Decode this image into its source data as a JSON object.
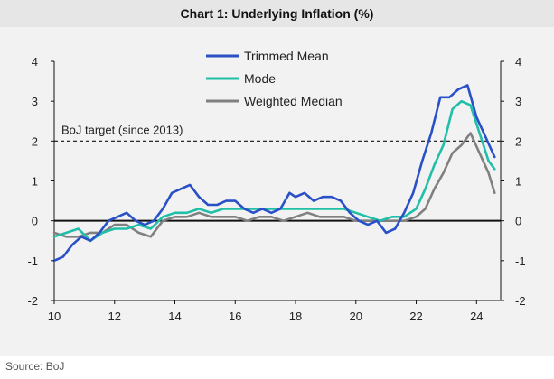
{
  "title": "Chart 1: Underlying Inflation (%)",
  "source": "Source: BoJ",
  "colors": {
    "trimmed_mean": "#2a50c8",
    "mode": "#1fbfa8",
    "weighted_median": "#808080",
    "zero_line": "#111111",
    "target": "#111111"
  },
  "chart_data": {
    "type": "line",
    "title": "Chart 1: Underlying Inflation (%)",
    "xlabel": "",
    "ylabel": "",
    "xlim": [
      10,
      24.8
    ],
    "ylim": [
      -2,
      4
    ],
    "x_ticks": [
      10,
      12,
      14,
      16,
      18,
      20,
      22,
      24
    ],
    "x_tick_labels": [
      "10",
      "12",
      "14",
      "16",
      "18",
      "20",
      "22",
      "24"
    ],
    "y_ticks": [
      -2,
      -1,
      0,
      1,
      2,
      3,
      4
    ],
    "y_tick_labels": [
      "-2",
      "-1",
      "0",
      "1",
      "2",
      "3",
      "4"
    ],
    "legend_position": "top-center",
    "grid": false,
    "annotations": [
      {
        "text": "BoJ target (since 2013)",
        "y": 2
      }
    ],
    "series": [
      {
        "name": "Trimmed Mean",
        "color": "#2a50c8",
        "points": [
          [
            10.0,
            -1.0
          ],
          [
            10.3,
            -0.9
          ],
          [
            10.6,
            -0.6
          ],
          [
            10.9,
            -0.4
          ],
          [
            11.2,
            -0.5
          ],
          [
            11.5,
            -0.3
          ],
          [
            11.8,
            0.0
          ],
          [
            12.1,
            0.1
          ],
          [
            12.4,
            0.2
          ],
          [
            12.7,
            0.0
          ],
          [
            13.0,
            -0.1
          ],
          [
            13.3,
            0.0
          ],
          [
            13.6,
            0.3
          ],
          [
            13.9,
            0.7
          ],
          [
            14.2,
            0.8
          ],
          [
            14.5,
            0.9
          ],
          [
            14.8,
            0.6
          ],
          [
            15.1,
            0.4
          ],
          [
            15.4,
            0.4
          ],
          [
            15.7,
            0.5
          ],
          [
            16.0,
            0.5
          ],
          [
            16.3,
            0.3
          ],
          [
            16.6,
            0.2
          ],
          [
            16.9,
            0.3
          ],
          [
            17.2,
            0.2
          ],
          [
            17.5,
            0.3
          ],
          [
            17.8,
            0.7
          ],
          [
            18.0,
            0.6
          ],
          [
            18.3,
            0.7
          ],
          [
            18.6,
            0.5
          ],
          [
            18.9,
            0.6
          ],
          [
            19.2,
            0.6
          ],
          [
            19.5,
            0.5
          ],
          [
            19.8,
            0.2
          ],
          [
            20.1,
            0.0
          ],
          [
            20.4,
            -0.1
          ],
          [
            20.7,
            0.0
          ],
          [
            21.0,
            -0.3
          ],
          [
            21.3,
            -0.2
          ],
          [
            21.6,
            0.2
          ],
          [
            21.9,
            0.7
          ],
          [
            22.2,
            1.5
          ],
          [
            22.5,
            2.2
          ],
          [
            22.8,
            3.1
          ],
          [
            23.1,
            3.1
          ],
          [
            23.4,
            3.3
          ],
          [
            23.7,
            3.4
          ],
          [
            24.0,
            2.6
          ],
          [
            24.3,
            2.1
          ],
          [
            24.6,
            1.6
          ]
        ]
      },
      {
        "name": "Mode",
        "color": "#1fbfa8",
        "points": [
          [
            10.0,
            -0.4
          ],
          [
            10.4,
            -0.3
          ],
          [
            10.8,
            -0.2
          ],
          [
            11.2,
            -0.5
          ],
          [
            11.6,
            -0.3
          ],
          [
            12.0,
            -0.2
          ],
          [
            12.4,
            -0.2
          ],
          [
            12.8,
            -0.1
          ],
          [
            13.2,
            -0.2
          ],
          [
            13.6,
            0.1
          ],
          [
            14.0,
            0.2
          ],
          [
            14.4,
            0.2
          ],
          [
            14.8,
            0.3
          ],
          [
            15.2,
            0.2
          ],
          [
            15.6,
            0.3
          ],
          [
            16.0,
            0.3
          ],
          [
            16.4,
            0.3
          ],
          [
            16.8,
            0.3
          ],
          [
            17.2,
            0.3
          ],
          [
            17.6,
            0.3
          ],
          [
            18.0,
            0.3
          ],
          [
            18.4,
            0.3
          ],
          [
            18.8,
            0.3
          ],
          [
            19.2,
            0.3
          ],
          [
            19.6,
            0.3
          ],
          [
            20.0,
            0.2
          ],
          [
            20.4,
            0.1
          ],
          [
            20.8,
            0.0
          ],
          [
            21.2,
            0.1
          ],
          [
            21.6,
            0.1
          ],
          [
            22.0,
            0.3
          ],
          [
            22.3,
            0.8
          ],
          [
            22.6,
            1.4
          ],
          [
            22.9,
            1.9
          ],
          [
            23.2,
            2.8
          ],
          [
            23.5,
            3.0
          ],
          [
            23.8,
            2.9
          ],
          [
            24.1,
            2.2
          ],
          [
            24.4,
            1.5
          ],
          [
            24.6,
            1.3
          ]
        ]
      },
      {
        "name": "Weighted Median",
        "color": "#808080",
        "points": [
          [
            10.0,
            -0.3
          ],
          [
            10.4,
            -0.4
          ],
          [
            10.8,
            -0.4
          ],
          [
            11.2,
            -0.3
          ],
          [
            11.6,
            -0.3
          ],
          [
            12.0,
            -0.1
          ],
          [
            12.4,
            -0.1
          ],
          [
            12.8,
            -0.3
          ],
          [
            13.2,
            -0.4
          ],
          [
            13.6,
            0.0
          ],
          [
            14.0,
            0.1
          ],
          [
            14.4,
            0.1
          ],
          [
            14.8,
            0.2
          ],
          [
            15.2,
            0.1
          ],
          [
            15.6,
            0.1
          ],
          [
            16.0,
            0.1
          ],
          [
            16.4,
            0.0
          ],
          [
            16.8,
            0.1
          ],
          [
            17.2,
            0.1
          ],
          [
            17.6,
            0.0
          ],
          [
            18.0,
            0.1
          ],
          [
            18.4,
            0.2
          ],
          [
            18.8,
            0.1
          ],
          [
            19.2,
            0.1
          ],
          [
            19.6,
            0.1
          ],
          [
            20.0,
            0.0
          ],
          [
            20.4,
            0.0
          ],
          [
            20.8,
            0.0
          ],
          [
            21.2,
            0.0
          ],
          [
            21.6,
            0.0
          ],
          [
            22.0,
            0.1
          ],
          [
            22.3,
            0.3
          ],
          [
            22.6,
            0.8
          ],
          [
            22.9,
            1.2
          ],
          [
            23.2,
            1.7
          ],
          [
            23.5,
            1.9
          ],
          [
            23.8,
            2.2
          ],
          [
            24.1,
            1.7
          ],
          [
            24.4,
            1.2
          ],
          [
            24.6,
            0.7
          ]
        ]
      }
    ]
  }
}
